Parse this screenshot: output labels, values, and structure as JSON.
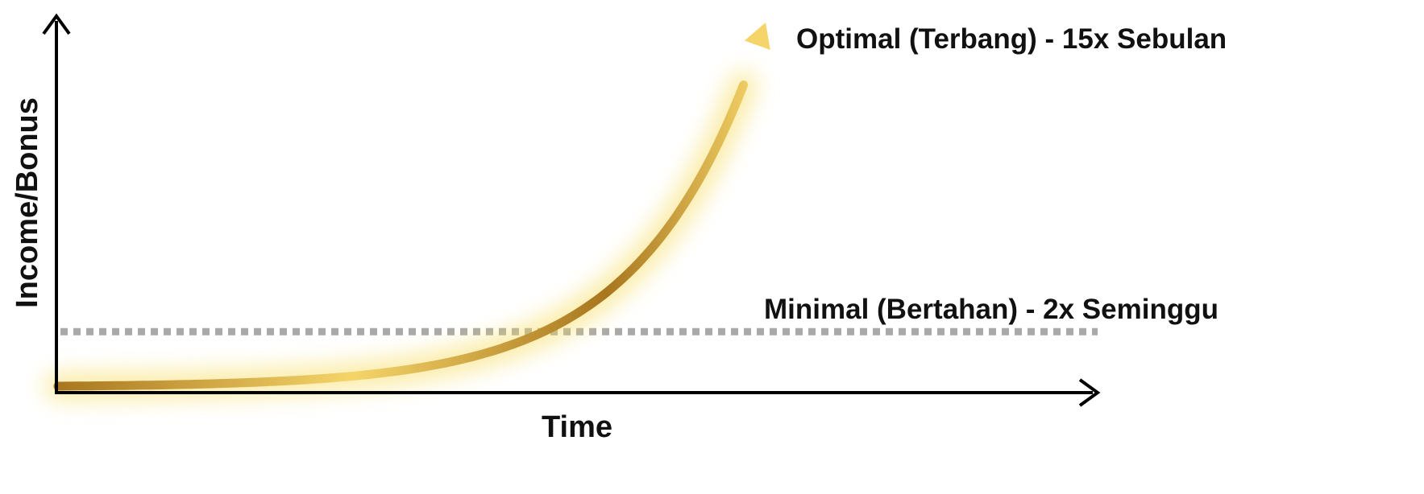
{
  "chart_data": {
    "type": "line",
    "xlabel": "Time",
    "ylabel": "Income/Bonus",
    "grid": false,
    "series": [
      {
        "name": "Optimal (Terbang) - 15x Sebulan",
        "style": "exponential",
        "x": [
          0,
          0.1,
          0.2,
          0.3,
          0.4,
          0.5,
          0.6,
          0.7,
          0.8,
          0.9,
          1
        ],
        "y": [
          0,
          0.005,
          0.012,
          0.025,
          0.05,
          0.09,
          0.15,
          0.24,
          0.38,
          0.6,
          1
        ]
      },
      {
        "name": "Minimal (Bertahan) - 2x Seminggu",
        "style": "constant",
        "y_value": 0.15
      }
    ],
    "colors": {
      "curve_dark": "#a8761e",
      "curve_light": "#f5d56a",
      "glow": "#f7dc5a",
      "baseline": "#a9a9a9",
      "axis": "#000000"
    }
  }
}
